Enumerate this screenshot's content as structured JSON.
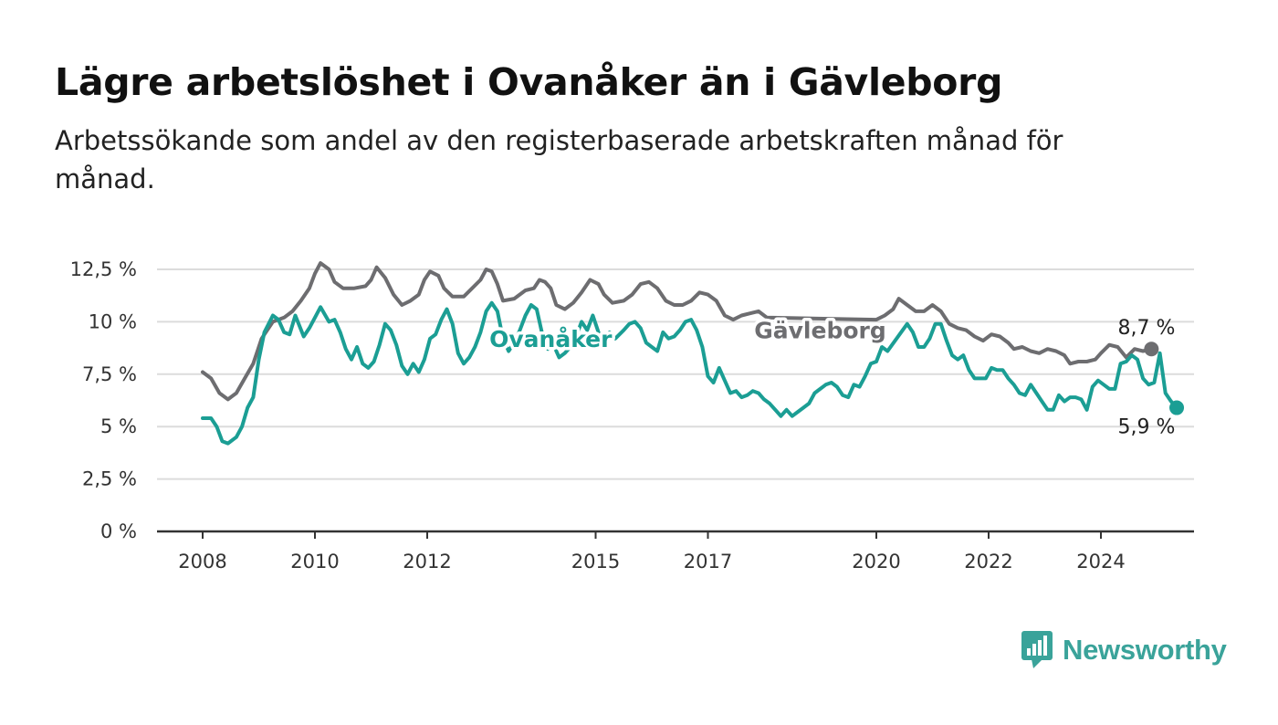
{
  "title": "Lägre arbetslöshet i Ovanåker än i Gävleborg",
  "subtitle": "Arbetssökande som andel av den registerbaserade arbetskraften månad för månad.",
  "brand": {
    "name": "Newsworthy",
    "icon": "newsworthy-logo-icon",
    "color": "#3aa39a"
  },
  "chart_data": {
    "type": "line",
    "y_ticks": [
      {
        "value": 0,
        "label": "0 %"
      },
      {
        "value": 2.5,
        "label": "2,5 %"
      },
      {
        "value": 5,
        "label": "5 %"
      },
      {
        "value": 7.5,
        "label": "7,5 %"
      },
      {
        "value": 10,
        "label": "10 %"
      },
      {
        "value": 12.5,
        "label": "12,5 %"
      }
    ],
    "ylim": [
      0,
      12.5
    ],
    "xlim": [
      2008,
      2025.4
    ],
    "x_ticks": [
      {
        "value": 2008,
        "label": "2008"
      },
      {
        "value": 2010,
        "label": "2010"
      },
      {
        "value": 2012,
        "label": "2012"
      },
      {
        "value": 2015,
        "label": "2015"
      },
      {
        "value": 2017,
        "label": "2017"
      },
      {
        "value": 2020,
        "label": "2020"
      },
      {
        "value": 2022,
        "label": "2022"
      },
      {
        "value": 2024,
        "label": "2024"
      }
    ],
    "grid": true,
    "series": [
      {
        "name": "Gävleborg",
        "color": "#6d6d70",
        "end_label": "8,7 %",
        "points": [
          [
            2008.0,
            7.6
          ],
          [
            2008.15,
            7.3
          ],
          [
            2008.3,
            6.6
          ],
          [
            2008.45,
            6.3
          ],
          [
            2008.6,
            6.6
          ],
          [
            2008.75,
            7.3
          ],
          [
            2008.9,
            8.0
          ],
          [
            2009.05,
            9.2
          ],
          [
            2009.25,
            10.0
          ],
          [
            2009.45,
            10.2
          ],
          [
            2009.6,
            10.5
          ],
          [
            2009.75,
            11.0
          ],
          [
            2009.9,
            11.6
          ],
          [
            2010.0,
            12.3
          ],
          [
            2010.1,
            12.8
          ],
          [
            2010.25,
            12.5
          ],
          [
            2010.35,
            11.9
          ],
          [
            2010.5,
            11.6
          ],
          [
            2010.7,
            11.6
          ],
          [
            2010.9,
            11.7
          ],
          [
            2011.0,
            12.0
          ],
          [
            2011.1,
            12.6
          ],
          [
            2011.25,
            12.1
          ],
          [
            2011.4,
            11.3
          ],
          [
            2011.55,
            10.8
          ],
          [
            2011.7,
            11.0
          ],
          [
            2011.85,
            11.3
          ],
          [
            2011.95,
            12.0
          ],
          [
            2012.05,
            12.4
          ],
          [
            2012.2,
            12.2
          ],
          [
            2012.3,
            11.6
          ],
          [
            2012.45,
            11.2
          ],
          [
            2012.65,
            11.2
          ],
          [
            2012.8,
            11.6
          ],
          [
            2012.95,
            12.0
          ],
          [
            2013.05,
            12.5
          ],
          [
            2013.15,
            12.4
          ],
          [
            2013.25,
            11.8
          ],
          [
            2013.35,
            11.0
          ],
          [
            2013.55,
            11.1
          ],
          [
            2013.75,
            11.5
          ],
          [
            2013.9,
            11.6
          ],
          [
            2014.0,
            12.0
          ],
          [
            2014.1,
            11.9
          ],
          [
            2014.2,
            11.6
          ],
          [
            2014.3,
            10.8
          ],
          [
            2014.45,
            10.6
          ],
          [
            2014.6,
            10.9
          ],
          [
            2014.75,
            11.4
          ],
          [
            2014.9,
            12.0
          ],
          [
            2015.05,
            11.8
          ],
          [
            2015.15,
            11.3
          ],
          [
            2015.3,
            10.9
          ],
          [
            2015.5,
            11.0
          ],
          [
            2015.65,
            11.3
          ],
          [
            2015.8,
            11.8
          ],
          [
            2015.95,
            11.9
          ],
          [
            2016.1,
            11.6
          ],
          [
            2016.25,
            11.0
          ],
          [
            2016.4,
            10.8
          ],
          [
            2016.55,
            10.8
          ],
          [
            2016.7,
            11.0
          ],
          [
            2016.85,
            11.4
          ],
          [
            2017.0,
            11.3
          ],
          [
            2017.15,
            11.0
          ],
          [
            2017.3,
            10.3
          ],
          [
            2017.45,
            10.1
          ],
          [
            2017.6,
            10.3
          ],
          [
            2017.75,
            10.4
          ],
          [
            2017.9,
            10.5
          ],
          [
            2018.05,
            10.2
          ],
          [
            2020.0,
            10.1
          ],
          [
            2020.15,
            10.3
          ],
          [
            2020.3,
            10.6
          ],
          [
            2020.4,
            11.1
          ],
          [
            2020.55,
            10.8
          ],
          [
            2020.7,
            10.5
          ],
          [
            2020.85,
            10.5
          ],
          [
            2021.0,
            10.8
          ],
          [
            2021.15,
            10.5
          ],
          [
            2021.3,
            9.9
          ],
          [
            2021.45,
            9.7
          ],
          [
            2021.6,
            9.6
          ],
          [
            2021.75,
            9.3
          ],
          [
            2021.9,
            9.1
          ],
          [
            2022.05,
            9.4
          ],
          [
            2022.2,
            9.3
          ],
          [
            2022.35,
            9.0
          ],
          [
            2022.45,
            8.7
          ],
          [
            2022.6,
            8.8
          ],
          [
            2022.75,
            8.6
          ],
          [
            2022.9,
            8.5
          ],
          [
            2023.05,
            8.7
          ],
          [
            2023.2,
            8.6
          ],
          [
            2023.35,
            8.4
          ],
          [
            2023.45,
            8.0
          ],
          [
            2023.6,
            8.1
          ],
          [
            2023.75,
            8.1
          ],
          [
            2023.9,
            8.2
          ],
          [
            2024.0,
            8.5
          ],
          [
            2024.15,
            8.9
          ],
          [
            2024.3,
            8.8
          ],
          [
            2024.45,
            8.3
          ],
          [
            2024.6,
            8.7
          ],
          [
            2024.75,
            8.6
          ],
          [
            2024.9,
            8.7
          ]
        ]
      },
      {
        "name": "Ovanåker",
        "color": "#1b9e94",
        "end_label": "5,9 %",
        "points": [
          [
            2008.0,
            5.4
          ],
          [
            2008.15,
            5.4
          ],
          [
            2008.25,
            5.0
          ],
          [
            2008.35,
            4.3
          ],
          [
            2008.45,
            4.2
          ],
          [
            2008.6,
            4.5
          ],
          [
            2008.7,
            5.0
          ],
          [
            2008.8,
            5.9
          ],
          [
            2008.9,
            6.4
          ],
          [
            2009.0,
            8.2
          ],
          [
            2009.1,
            9.5
          ],
          [
            2009.25,
            10.3
          ],
          [
            2009.35,
            10.1
          ],
          [
            2009.45,
            9.5
          ],
          [
            2009.55,
            9.4
          ],
          [
            2009.65,
            10.3
          ],
          [
            2009.8,
            9.3
          ],
          [
            2009.9,
            9.7
          ],
          [
            2010.0,
            10.2
          ],
          [
            2010.1,
            10.7
          ],
          [
            2010.25,
            10.0
          ],
          [
            2010.35,
            10.1
          ],
          [
            2010.45,
            9.5
          ],
          [
            2010.55,
            8.7
          ],
          [
            2010.65,
            8.2
          ],
          [
            2010.75,
            8.8
          ],
          [
            2010.85,
            8.0
          ],
          [
            2010.95,
            7.8
          ],
          [
            2011.05,
            8.1
          ],
          [
            2011.15,
            8.9
          ],
          [
            2011.25,
            9.9
          ],
          [
            2011.35,
            9.6
          ],
          [
            2011.45,
            8.9
          ],
          [
            2011.55,
            7.9
          ],
          [
            2011.65,
            7.5
          ],
          [
            2011.75,
            8.0
          ],
          [
            2011.85,
            7.6
          ],
          [
            2011.95,
            8.2
          ],
          [
            2012.05,
            9.2
          ],
          [
            2012.15,
            9.4
          ],
          [
            2012.25,
            10.1
          ],
          [
            2012.35,
            10.6
          ],
          [
            2012.45,
            9.9
          ],
          [
            2012.55,
            8.5
          ],
          [
            2012.65,
            8.0
          ],
          [
            2012.75,
            8.3
          ],
          [
            2012.85,
            8.8
          ],
          [
            2012.95,
            9.5
          ],
          [
            2013.05,
            10.5
          ],
          [
            2013.15,
            10.9
          ],
          [
            2013.25,
            10.5
          ],
          [
            2013.35,
            9.2
          ],
          [
            2013.45,
            8.6
          ],
          [
            2013.55,
            9.0
          ],
          [
            2013.65,
            9.6
          ],
          [
            2013.75,
            10.3
          ],
          [
            2013.85,
            10.8
          ],
          [
            2013.95,
            10.6
          ],
          [
            2014.05,
            9.4
          ],
          [
            2014.15,
            8.7
          ],
          [
            2014.25,
            8.9
          ],
          [
            2014.35,
            8.3
          ],
          [
            2014.45,
            8.5
          ],
          [
            2014.55,
            8.8
          ],
          [
            2014.65,
            9.3
          ],
          [
            2014.75,
            10.0
          ],
          [
            2014.85,
            9.6
          ],
          [
            2014.95,
            10.3
          ],
          [
            2015.05,
            9.5
          ],
          [
            2015.15,
            8.9
          ],
          [
            2015.25,
            9.5
          ],
          [
            2015.35,
            9.2
          ],
          [
            2015.5,
            9.6
          ],
          [
            2015.6,
            9.9
          ],
          [
            2015.7,
            10.0
          ],
          [
            2015.8,
            9.7
          ],
          [
            2015.9,
            9.0
          ],
          [
            2016.0,
            8.8
          ],
          [
            2016.1,
            8.6
          ],
          [
            2016.2,
            9.5
          ],
          [
            2016.3,
            9.2
          ],
          [
            2016.4,
            9.3
          ],
          [
            2016.5,
            9.6
          ],
          [
            2016.6,
            10.0
          ],
          [
            2016.7,
            10.1
          ],
          [
            2016.8,
            9.6
          ],
          [
            2016.9,
            8.8
          ],
          [
            2017.0,
            7.4
          ],
          [
            2017.1,
            7.1
          ],
          [
            2017.2,
            7.8
          ],
          [
            2017.3,
            7.2
          ],
          [
            2017.4,
            6.6
          ],
          [
            2017.5,
            6.7
          ],
          [
            2017.6,
            6.4
          ],
          [
            2017.7,
            6.5
          ],
          [
            2017.8,
            6.7
          ],
          [
            2017.9,
            6.6
          ],
          [
            2018.0,
            6.3
          ],
          [
            2018.1,
            6.1
          ],
          [
            2018.2,
            5.8
          ],
          [
            2018.3,
            5.5
          ],
          [
            2018.4,
            5.8
          ],
          [
            2018.5,
            5.5
          ],
          [
            2018.6,
            5.7
          ],
          [
            2018.7,
            5.9
          ],
          [
            2018.8,
            6.1
          ],
          [
            2018.9,
            6.6
          ],
          [
            2019.0,
            6.8
          ],
          [
            2019.1,
            7.0
          ],
          [
            2019.2,
            7.1
          ],
          [
            2019.3,
            6.9
          ],
          [
            2019.4,
            6.5
          ],
          [
            2019.5,
            6.4
          ],
          [
            2019.6,
            7.0
          ],
          [
            2019.7,
            6.9
          ],
          [
            2019.8,
            7.4
          ],
          [
            2019.9,
            8.0
          ],
          [
            2020.0,
            8.1
          ],
          [
            2020.1,
            8.8
          ],
          [
            2020.2,
            8.6
          ],
          [
            2020.55,
            9.9
          ],
          [
            2020.65,
            9.5
          ],
          [
            2020.75,
            8.8
          ],
          [
            2020.85,
            8.8
          ],
          [
            2020.95,
            9.2
          ],
          [
            2021.05,
            9.9
          ],
          [
            2021.15,
            9.9
          ],
          [
            2021.25,
            9.1
          ],
          [
            2021.35,
            8.4
          ],
          [
            2021.45,
            8.2
          ],
          [
            2021.55,
            8.4
          ],
          [
            2021.65,
            7.7
          ],
          [
            2021.75,
            7.3
          ],
          [
            2021.85,
            7.3
          ],
          [
            2021.95,
            7.3
          ],
          [
            2022.05,
            7.8
          ],
          [
            2022.15,
            7.7
          ],
          [
            2022.25,
            7.7
          ],
          [
            2022.35,
            7.3
          ],
          [
            2022.45,
            7.0
          ],
          [
            2022.55,
            6.6
          ],
          [
            2022.65,
            6.5
          ],
          [
            2022.75,
            7.0
          ],
          [
            2022.85,
            6.6
          ],
          [
            2022.95,
            6.2
          ],
          [
            2023.05,
            5.8
          ],
          [
            2023.15,
            5.8
          ],
          [
            2023.25,
            6.5
          ],
          [
            2023.35,
            6.2
          ],
          [
            2023.45,
            6.4
          ],
          [
            2023.55,
            6.4
          ],
          [
            2023.65,
            6.3
          ],
          [
            2023.75,
            5.8
          ],
          [
            2023.85,
            6.9
          ],
          [
            2023.95,
            7.2
          ],
          [
            2024.05,
            7.0
          ],
          [
            2024.15,
            6.8
          ],
          [
            2024.25,
            6.8
          ],
          [
            2024.35,
            8.0
          ],
          [
            2024.45,
            8.1
          ],
          [
            2024.55,
            8.4
          ],
          [
            2024.65,
            8.2
          ],
          [
            2024.75,
            7.3
          ],
          [
            2024.85,
            7.0
          ],
          [
            2024.95,
            7.1
          ],
          [
            2025.05,
            8.5
          ],
          [
            2025.15,
            6.6
          ],
          [
            2025.25,
            6.2
          ],
          [
            2025.35,
            5.9
          ]
        ]
      }
    ],
    "series_labels": [
      {
        "name": "Ovanåker",
        "x": 2014.2,
        "y": 9.2
      },
      {
        "name": "Gävleborg",
        "x": 2019.0,
        "y": 9.6
      }
    ]
  }
}
